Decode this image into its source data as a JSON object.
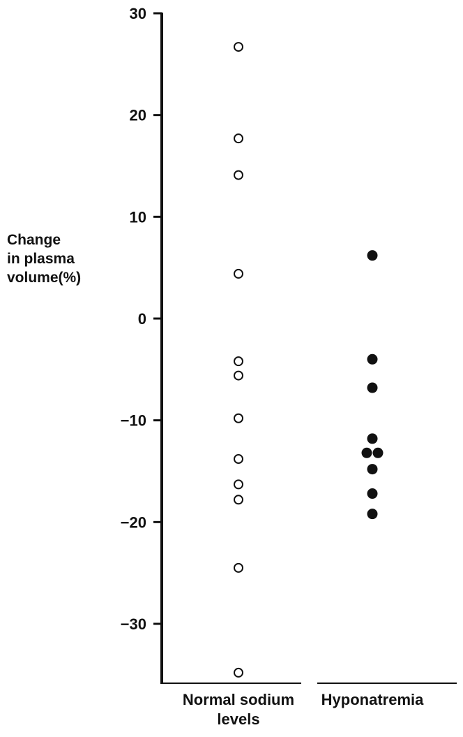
{
  "chart_data": {
    "type": "scatter",
    "ylabel": [
      "Change",
      "in plasma",
      "volume(%)"
    ],
    "ylim": [
      -36,
      30
    ],
    "yticks": [
      30,
      20,
      10,
      0,
      -10,
      -20,
      -30
    ],
    "ytick_labels": [
      "30",
      "20",
      "10",
      "0",
      "−10",
      "−20",
      "−30"
    ],
    "categories": [
      {
        "lines": [
          "Normal sodium",
          "levels"
        ]
      },
      {
        "lines": [
          "Hyponatremia"
        ]
      }
    ],
    "series": [
      {
        "category": 0,
        "marker": "open-circle",
        "points": [
          {
            "y": 26.7
          },
          {
            "y": 17.7
          },
          {
            "y": 14.1
          },
          {
            "y": 4.4
          },
          {
            "y": -4.2
          },
          {
            "y": -5.6
          },
          {
            "y": -9.8
          },
          {
            "y": -13.8
          },
          {
            "y": -16.3
          },
          {
            "y": -17.8
          },
          {
            "y": -24.5
          },
          {
            "y": -34.8
          }
        ]
      },
      {
        "category": 1,
        "marker": "filled-circle",
        "points": [
          {
            "y": 6.2
          },
          {
            "y": -4.0
          },
          {
            "y": -6.8
          },
          {
            "y": -11.8
          },
          {
            "y": -13.2,
            "offset": -1
          },
          {
            "y": -13.2,
            "offset": 1
          },
          {
            "y": -14.8
          },
          {
            "y": -17.2
          },
          {
            "y": -19.2
          }
        ]
      }
    ],
    "colors": {
      "ink": "#111111"
    }
  }
}
